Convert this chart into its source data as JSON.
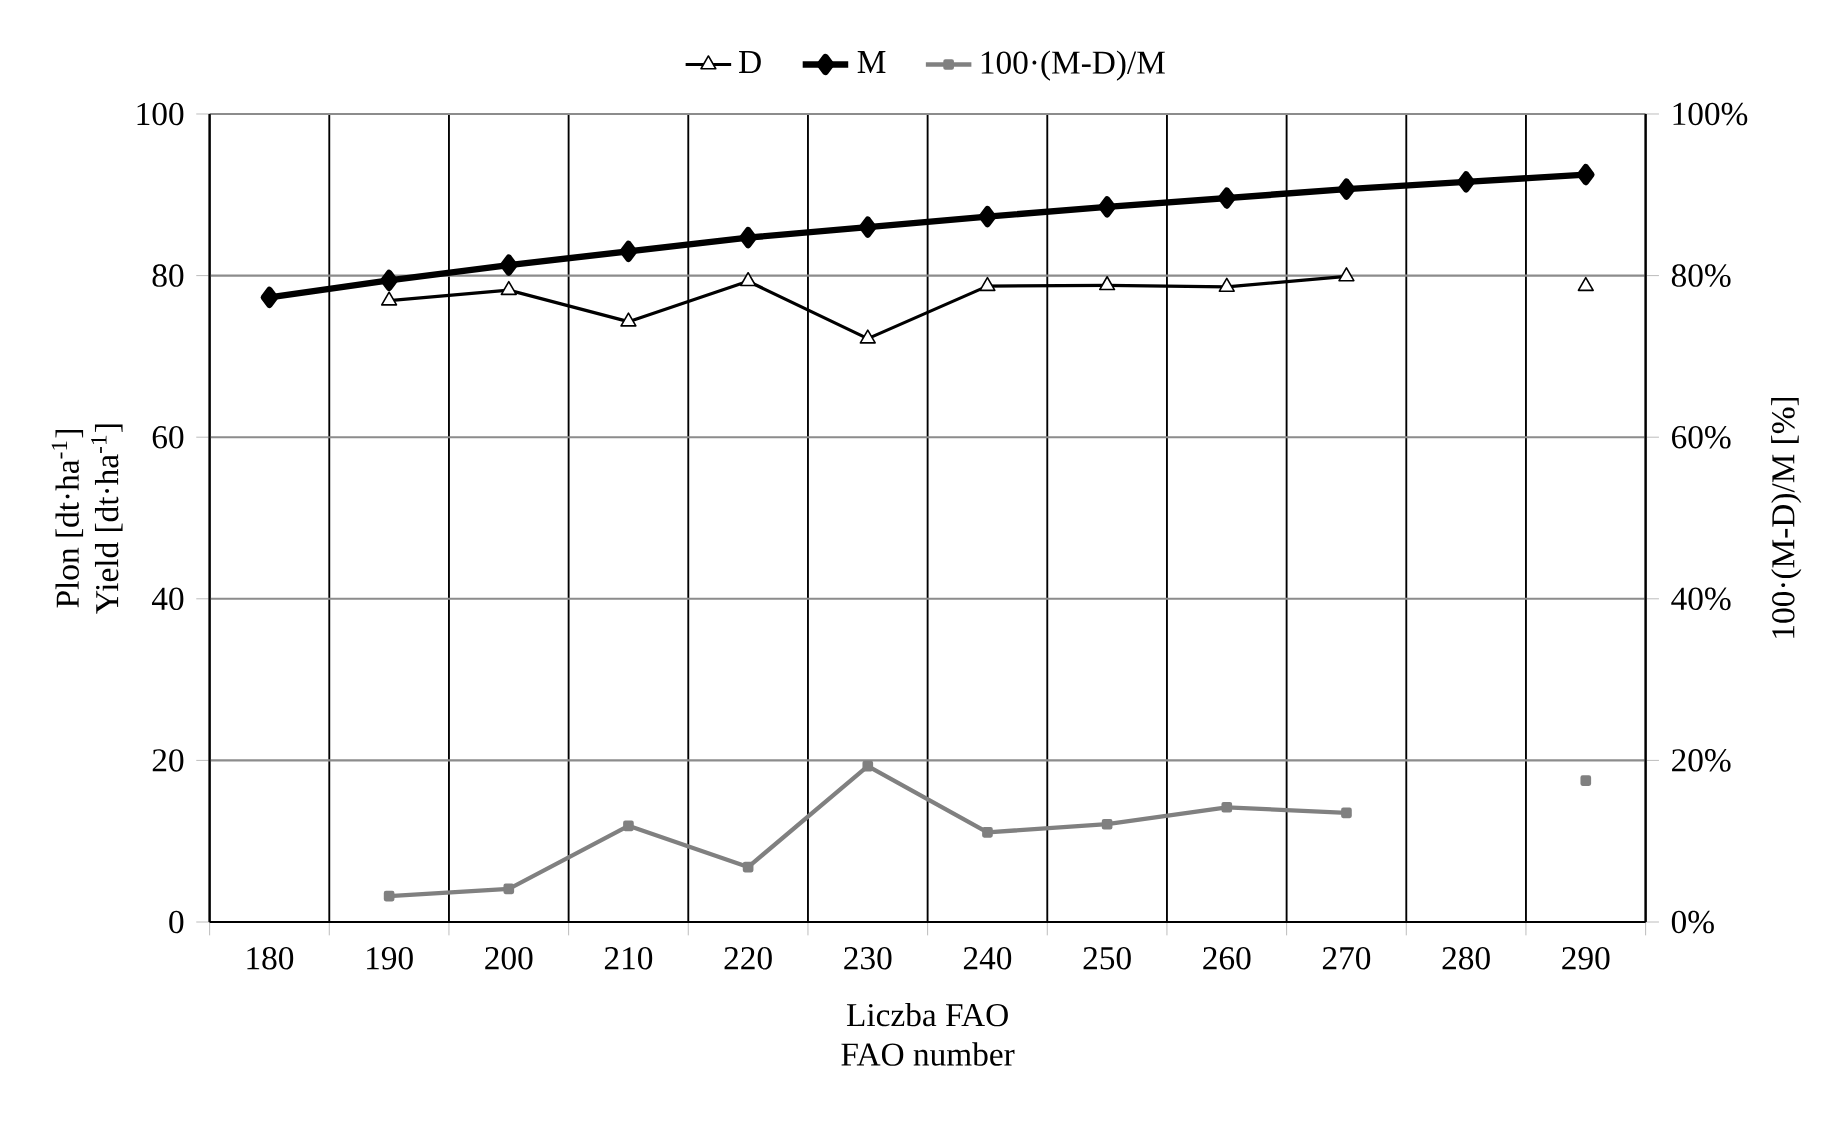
{
  "chart_data": {
    "type": "line",
    "xlabel": "Liczba FAO",
    "ylabel": "Plon  [dt·ha$^{-1}$]",
    "y2label": "100·(M-D)/M [%]",
    "annotations": [
      "Yield [dt·ha$^{-1}$]",
      "FAO number"
    ],
    "categories": [
      "180",
      "190",
      "200",
      "210",
      "220",
      "230",
      "240",
      "250",
      "260",
      "270",
      "280",
      "290"
    ],
    "series": [
      {
        "name": "D",
        "color": "#000000",
        "marker": "triangle",
        "values": [
          null,
          76.9,
          78.2,
          74.3,
          79.3,
          72.2,
          78.7,
          78.8,
          78.6,
          79.9,
          null,
          78.7
        ]
      },
      {
        "name": "M",
        "color": "#000000",
        "marker": "diamond",
        "values": [
          77.3,
          79.4,
          81.3,
          83.0,
          84.7,
          86.0,
          87.3,
          88.5,
          89.6,
          90.7,
          91.6,
          92.5
        ]
      },
      {
        "name": "100·(M-D)/M",
        "color": "#808080",
        "marker": "square",
        "axis": "y2",
        "values": [
          null,
          3.2,
          4.1,
          11.9,
          6.8,
          19.3,
          11.1,
          12.1,
          14.2,
          13.5,
          null,
          17.5
        ]
      }
    ],
    "ylim": [
      0,
      100
    ],
    "yticks": [
      0,
      20,
      40,
      60,
      80,
      100
    ],
    "y2lim": [
      0,
      100
    ],
    "y2ticks": [
      {
        "value": 0,
        "label": "0%"
      },
      {
        "value": 20,
        "label": "20%"
      },
      {
        "value": 40,
        "label": "40%"
      },
      {
        "value": 60,
        "label": "60%"
      },
      {
        "value": 80,
        "label": "80%"
      },
      {
        "value": 100,
        "label": "100%"
      }
    ],
    "grid": true,
    "legend": "top"
  }
}
